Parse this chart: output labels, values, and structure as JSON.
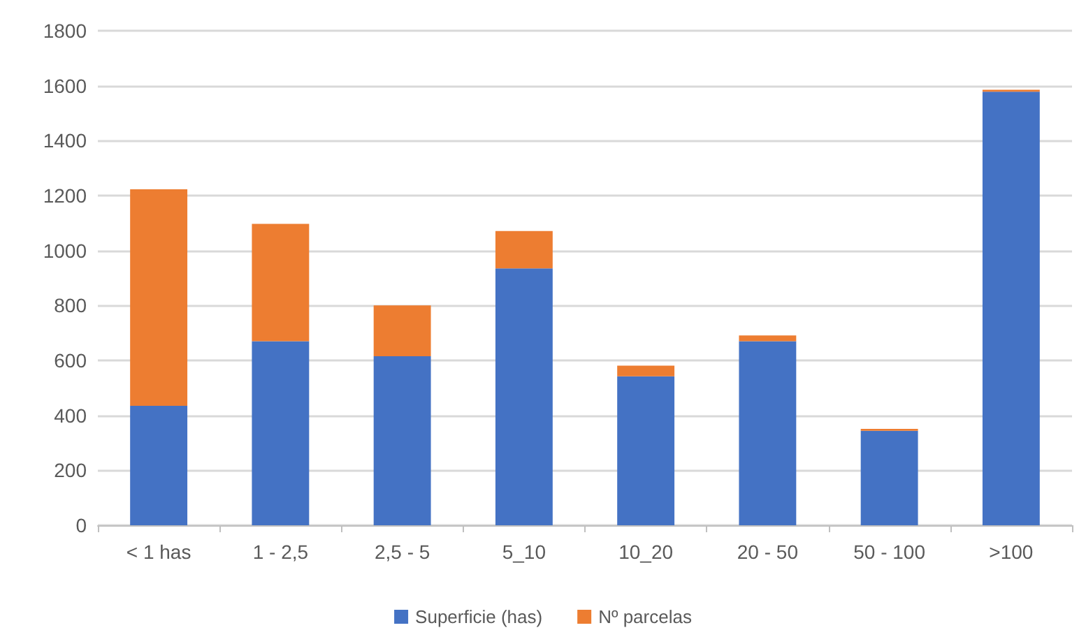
{
  "chart_data": {
    "type": "bar",
    "stacked": true,
    "categories": [
      "< 1 has",
      "1 - 2,5",
      "2,5 - 5",
      "5_10",
      "10_20",
      "20 - 50",
      "50 - 100",
      ">100"
    ],
    "series": [
      {
        "name": "Superficie (has)",
        "color": "#4472c4",
        "values": [
          435,
          670,
          615,
          935,
          542,
          670,
          344,
          1578
        ]
      },
      {
        "name": "Nº parcelas",
        "color": "#ed7d31",
        "values": [
          788,
          427,
          185,
          136,
          39,
          21,
          7,
          7
        ]
      }
    ],
    "ylim": [
      0,
      1800
    ],
    "yticks": [
      0,
      200,
      400,
      600,
      800,
      1000,
      1200,
      1400,
      1600,
      1800
    ],
    "grid": "y",
    "legend": "bottom"
  }
}
